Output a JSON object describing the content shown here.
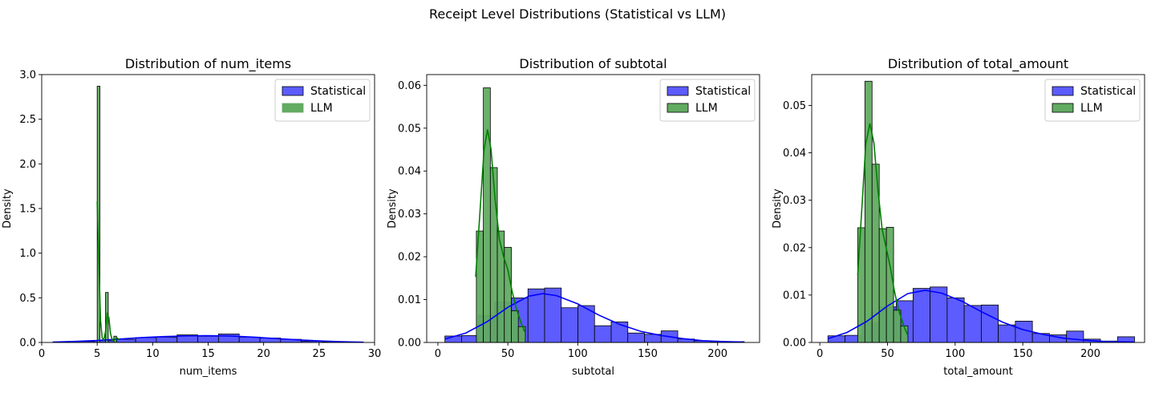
{
  "figure": {
    "suptitle": "Receipt Level Distributions (Statistical vs LLM)"
  },
  "colors": {
    "statistical_fill": "#5c5cff",
    "statistical_line": "#0000ff",
    "llm_fill": "#62ab62",
    "llm_line": "#008000",
    "overlap_fill": "#3e6a8a"
  },
  "chart_data": [
    {
      "type": "histogram",
      "title": "Distribution of num_items",
      "xlabel": "num_items",
      "ylabel": "Density",
      "xlim": [
        0,
        30
      ],
      "ylim": [
        0,
        3.0
      ],
      "xticks": [
        0,
        5,
        10,
        15,
        20,
        25,
        30
      ],
      "yticks": [
        0.0,
        0.5,
        1.0,
        1.5,
        2.0,
        2.5,
        3.0
      ],
      "ytick_labels": [
        "0.0",
        "0.5",
        "1.0",
        "1.5",
        "2.0",
        "2.5",
        "3.0"
      ],
      "legend": {
        "position": "top-right",
        "entries": [
          "Statistical",
          "LLM"
        ]
      },
      "series": [
        {
          "name": "Statistical",
          "bins": [
            [
              1,
              2.87,
              0.004
            ],
            [
              2.87,
              4.73,
              0.012
            ],
            [
              4.73,
              6.6,
              0.02
            ],
            [
              6.6,
              8.47,
              0.035
            ],
            [
              8.47,
              10.33,
              0.055
            ],
            [
              10.33,
              12.2,
              0.06
            ],
            [
              12.2,
              14.07,
              0.085
            ],
            [
              14.07,
              15.93,
              0.07
            ],
            [
              15.93,
              17.8,
              0.095
            ],
            [
              17.8,
              19.67,
              0.06
            ],
            [
              19.67,
              21.53,
              0.05
            ],
            [
              21.53,
              23.4,
              0.035
            ],
            [
              23.4,
              25.27,
              0.015
            ],
            [
              25.27,
              27.13,
              0.008
            ],
            [
              27.13,
              29,
              0.004
            ]
          ],
          "kde": [
            [
              1,
              0.004
            ],
            [
              3,
              0.012
            ],
            [
              5,
              0.022
            ],
            [
              7,
              0.038
            ],
            [
              9,
              0.055
            ],
            [
              11,
              0.066
            ],
            [
              13,
              0.073
            ],
            [
              15,
              0.076
            ],
            [
              17,
              0.072
            ],
            [
              19,
              0.06
            ],
            [
              21,
              0.045
            ],
            [
              23,
              0.03
            ],
            [
              25,
              0.017
            ],
            [
              27,
              0.008
            ],
            [
              29,
              0.003
            ]
          ]
        },
        {
          "name": "LLM",
          "bins": [
            [
              5,
              5.25,
              2.87
            ],
            [
              5.25,
              5.5,
              0.0
            ],
            [
              5.5,
              5.75,
              0.0
            ],
            [
              5.75,
              6.0,
              0.56
            ],
            [
              6.0,
              6.25,
              0.0
            ],
            [
              6.25,
              6.5,
              0.0
            ],
            [
              6.5,
              6.75,
              0.07
            ],
            [
              6.75,
              7.0,
              0.0
            ]
          ],
          "kde": [
            [
              5,
              1.58
            ],
            [
              5.15,
              0.9
            ],
            [
              5.3,
              0.25
            ],
            [
              5.45,
              0.05
            ],
            [
              5.6,
              0.03
            ],
            [
              5.75,
              0.12
            ],
            [
              5.9,
              0.32
            ],
            [
              6.05,
              0.28
            ],
            [
              6.2,
              0.1
            ],
            [
              6.35,
              0.03
            ],
            [
              6.5,
              0.02
            ],
            [
              6.65,
              0.04
            ],
            [
              6.8,
              0.05
            ],
            [
              7,
              0.03
            ]
          ]
        }
      ]
    },
    {
      "type": "histogram",
      "title": "Distribution of subtotal",
      "xlabel": "subtotal",
      "ylabel": "Density",
      "xlim": [
        -8,
        230
      ],
      "ylim": [
        0,
        0.0625
      ],
      "xticks": [
        0,
        50,
        100,
        150,
        200
      ],
      "yticks": [
        0.0,
        0.01,
        0.02,
        0.03,
        0.04,
        0.05,
        0.06
      ],
      "ytick_labels": [
        "0.00",
        "0.01",
        "0.02",
        "0.03",
        "0.04",
        "0.05",
        "0.06"
      ],
      "legend": {
        "position": "top-right",
        "entries": [
          "Statistical",
          "LLM"
        ]
      },
      "series": [
        {
          "name": "Statistical",
          "bins": [
            [
              5,
              16.9,
              0.0015
            ],
            [
              16.9,
              28.8,
              0.0016
            ],
            [
              28.8,
              40.7,
              0.0063
            ],
            [
              40.7,
              52.6,
              0.0094
            ],
            [
              52.6,
              64.4,
              0.0104
            ],
            [
              64.4,
              76.3,
              0.0125
            ],
            [
              76.3,
              88.2,
              0.0127
            ],
            [
              88.2,
              100.1,
              0.0081
            ],
            [
              100.1,
              112.0,
              0.0086
            ],
            [
              112.0,
              123.9,
              0.0039
            ],
            [
              123.9,
              135.8,
              0.0048
            ],
            [
              135.8,
              147.7,
              0.0022
            ],
            [
              147.7,
              159.6,
              0.0019
            ],
            [
              159.6,
              171.5,
              0.0027
            ],
            [
              171.5,
              183.3,
              0.0008
            ],
            [
              183.3,
              195.2,
              0.0004
            ],
            [
              195.2,
              207.1,
              0.0002
            ],
            [
              207.1,
              219,
              0.0002
            ]
          ],
          "kde": [
            [
              5,
              0.0008
            ],
            [
              20,
              0.0022
            ],
            [
              35,
              0.0048
            ],
            [
              50,
              0.0082
            ],
            [
              65,
              0.0108
            ],
            [
              75,
              0.0114
            ],
            [
              85,
              0.0109
            ],
            [
              100,
              0.009
            ],
            [
              115,
              0.0064
            ],
            [
              130,
              0.0042
            ],
            [
              145,
              0.0026
            ],
            [
              160,
              0.0016
            ],
            [
              175,
              0.0009
            ],
            [
              190,
              0.0004
            ],
            [
              205,
              0.0002
            ],
            [
              218,
              0.0001
            ]
          ]
        },
        {
          "name": "LLM",
          "bins": [
            [
              27.5,
              32.5,
              0.026
            ],
            [
              32.5,
              37.5,
              0.0594
            ],
            [
              37.5,
              42.5,
              0.0408
            ],
            [
              42.5,
              47.5,
              0.026
            ],
            [
              47.5,
              52.5,
              0.0222
            ],
            [
              52.5,
              57.5,
              0.0074
            ],
            [
              57.5,
              62.5,
              0.0037
            ]
          ],
          "kde": [
            [
              27,
              0.0153
            ],
            [
              30,
              0.03
            ],
            [
              33,
              0.045
            ],
            [
              35.5,
              0.0497
            ],
            [
              38,
              0.045
            ],
            [
              41,
              0.033
            ],
            [
              44,
              0.024
            ],
            [
              47,
              0.02
            ],
            [
              50,
              0.017
            ],
            [
              53,
              0.012
            ],
            [
              56,
              0.008
            ],
            [
              59,
              0.005
            ],
            [
              62,
              0.0025
            ]
          ]
        }
      ]
    },
    {
      "type": "histogram",
      "title": "Distribution of total_amount",
      "xlabel": "total_amount",
      "ylabel": "Density",
      "xlim": [
        -6,
        240
      ],
      "ylim": [
        0,
        0.0565
      ],
      "xticks": [
        0,
        50,
        100,
        150,
        200
      ],
      "yticks": [
        0.0,
        0.01,
        0.02,
        0.03,
        0.04,
        0.05
      ],
      "ytick_labels": [
        "0.00",
        "0.01",
        "0.02",
        "0.03",
        "0.04",
        "0.05"
      ],
      "legend": {
        "position": "top-right",
        "entries": [
          "Statistical",
          "LLM"
        ]
      },
      "series": [
        {
          "name": "Statistical",
          "bins": [
            [
              6,
              18.6,
              0.0014
            ],
            [
              18.6,
              31.2,
              0.0015
            ],
            [
              31.2,
              43.8,
              0.0042
            ],
            [
              43.8,
              56.4,
              0.0075
            ],
            [
              56.4,
              68.9,
              0.0088
            ],
            [
              68.9,
              81.5,
              0.0114
            ],
            [
              81.5,
              94.1,
              0.0117
            ],
            [
              94.1,
              106.7,
              0.0094
            ],
            [
              106.7,
              119.3,
              0.0078
            ],
            [
              119.3,
              131.9,
              0.0079
            ],
            [
              131.9,
              144.5,
              0.0037
            ],
            [
              144.5,
              157.1,
              0.0045
            ],
            [
              157.1,
              169.7,
              0.0019
            ],
            [
              169.7,
              182.3,
              0.0016
            ],
            [
              182.3,
              194.9,
              0.0024
            ],
            [
              194.9,
              207.4,
              0.0007
            ],
            [
              207.4,
              220,
              0.0003
            ],
            [
              220,
              232.6,
              0.0012
            ]
          ],
          "kde": [
            [
              6,
              0.0008
            ],
            [
              20,
              0.0021
            ],
            [
              35,
              0.0045
            ],
            [
              50,
              0.0077
            ],
            [
              65,
              0.0103
            ],
            [
              78,
              0.011
            ],
            [
              90,
              0.0104
            ],
            [
              105,
              0.0087
            ],
            [
              120,
              0.0064
            ],
            [
              135,
              0.0043
            ],
            [
              150,
              0.0027
            ],
            [
              165,
              0.0017
            ],
            [
              180,
              0.0009
            ],
            [
              195,
              0.0005
            ],
            [
              210,
              0.0002
            ],
            [
              232,
              0.0001
            ]
          ]
        },
        {
          "name": "LLM",
          "bins": [
            [
              28,
              33.3,
              0.0242
            ],
            [
              33.3,
              38.6,
              0.0551
            ],
            [
              38.6,
              43.9,
              0.0376
            ],
            [
              43.9,
              49.2,
              0.024
            ],
            [
              49.2,
              54.5,
              0.0243
            ],
            [
              54.5,
              59.8,
              0.0068
            ],
            [
              59.8,
              65.1,
              0.0035
            ]
          ],
          "kde": [
            [
              28,
              0.0142
            ],
            [
              31,
              0.028
            ],
            [
              34,
              0.042
            ],
            [
              37,
              0.0462
            ],
            [
              40,
              0.042
            ],
            [
              43,
              0.032
            ],
            [
              46,
              0.024
            ],
            [
              49,
              0.02
            ],
            [
              52,
              0.016
            ],
            [
              55,
              0.011
            ],
            [
              58,
              0.007
            ],
            [
              62,
              0.0035
            ],
            [
              65,
              0.0015
            ]
          ]
        }
      ]
    }
  ]
}
